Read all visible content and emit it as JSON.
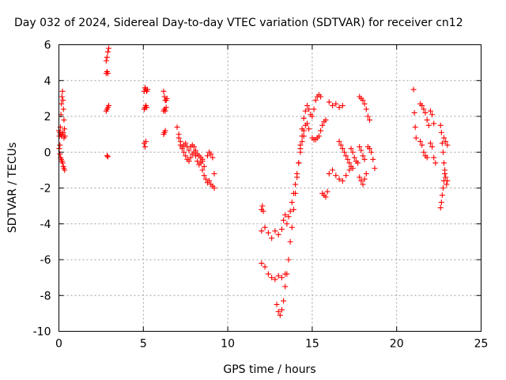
{
  "chart_data": {
    "type": "scatter",
    "title": "Day 032 of 2024, Sidereal Day-to-day VTEC variation (SDTVAR) for receiver cn12",
    "xlabel": "GPS time / hours",
    "ylabel": "SDTVAR / TECUs",
    "xlim": [
      0,
      25
    ],
    "ylim": [
      -10,
      6
    ],
    "xticks": [
      0,
      5,
      10,
      15,
      20,
      25
    ],
    "yticks": [
      -10,
      -8,
      -6,
      -4,
      -2,
      0,
      2,
      4,
      6
    ],
    "xtick_labels": [
      "0",
      "5",
      "10",
      "15",
      "20",
      "25"
    ],
    "ytick_labels": [
      "-10",
      "-8",
      "-6",
      "-4",
      "-2",
      "0",
      "2",
      "4",
      "6"
    ],
    "grid": true,
    "marker": "+",
    "color": "#ff0000",
    "segments": [
      {
        "x": [
          0.0,
          0.03,
          0.06,
          0.09,
          0.12,
          0.15,
          0.18,
          0.21,
          0.24,
          0.27,
          0.3,
          0.33,
          0.36
        ],
        "y": [
          1.2,
          0.9,
          0.4,
          1.4,
          2.1,
          2.7,
          3.1,
          3.4,
          2.9,
          2.4,
          1.8,
          1.3,
          0.9
        ]
      },
      {
        "x": [
          0.02,
          0.06,
          0.1,
          0.14,
          0.18,
          0.22,
          0.26,
          0.3,
          0.34
        ],
        "y": [
          0.2,
          -0.1,
          -0.3,
          -0.4,
          -0.5,
          -0.6,
          -0.8,
          -0.9,
          -1.0
        ]
      },
      {
        "x": [
          0.05,
          0.1,
          0.15,
          0.2,
          0.25,
          0.3
        ],
        "y": [
          1.1,
          1.0,
          0.9,
          1.0,
          1.1,
          0.8
        ]
      },
      {
        "x": [
          2.8,
          2.85,
          2.9,
          2.95
        ],
        "y": [
          5.1,
          5.3,
          5.6,
          5.8
        ]
      },
      {
        "x": [
          2.8,
          2.85,
          2.9
        ],
        "y": [
          4.4,
          4.5,
          4.4
        ]
      },
      {
        "x": [
          2.8,
          2.85,
          2.9,
          2.95
        ],
        "y": [
          2.3,
          2.4,
          2.5,
          2.6
        ]
      },
      {
        "x": [
          2.85,
          2.9
        ],
        "y": [
          -0.2,
          -0.25
        ]
      },
      {
        "x": [
          5.05,
          5.1,
          5.15,
          5.2,
          5.25
        ],
        "y": [
          3.4,
          3.6,
          3.5,
          3.4,
          3.5
        ]
      },
      {
        "x": [
          5.05,
          5.1,
          5.15,
          5.2
        ],
        "y": [
          2.4,
          2.5,
          2.6,
          2.5
        ]
      },
      {
        "x": [
          5.05,
          5.1,
          5.15
        ],
        "y": [
          0.5,
          0.3,
          0.6
        ]
      },
      {
        "x": [
          6.2,
          6.25,
          6.3,
          6.35,
          6.4
        ],
        "y": [
          3.4,
          3.1,
          2.9,
          2.9,
          3.0
        ]
      },
      {
        "x": [
          6.2,
          6.25,
          6.3,
          6.35
        ],
        "y": [
          2.3,
          2.4,
          2.3,
          2.5
        ]
      },
      {
        "x": [
          6.2,
          6.25,
          6.3
        ],
        "y": [
          1.0,
          1.1,
          1.2
        ]
      },
      {
        "x": [
          7.0,
          7.1,
          7.2,
          7.3,
          7.4,
          7.5,
          7.6,
          7.7,
          7.8,
          7.9,
          8.0,
          8.1,
          8.2,
          8.3,
          8.4,
          8.5
        ],
        "y": [
          1.4,
          1.0,
          0.6,
          0.3,
          0.0,
          -0.2,
          -0.4,
          -0.5,
          -0.3,
          -0.1,
          0.0,
          -0.2,
          -0.5,
          -0.7,
          -0.6,
          -0.4
        ]
      },
      {
        "x": [
          7.1,
          7.2,
          7.3,
          7.4,
          7.5,
          7.6,
          7.7,
          7.8,
          7.9,
          8.0,
          8.1,
          8.2,
          8.3,
          8.4,
          8.5,
          8.6
        ],
        "y": [
          0.8,
          0.4,
          0.2,
          0.4,
          0.5,
          0.3,
          0.1,
          0.3,
          0.4,
          0.3,
          0.1,
          -0.1,
          -0.2,
          -0.3,
          -0.5,
          -0.8
        ]
      },
      {
        "x": [
          8.5,
          8.6,
          8.7,
          8.8,
          8.9,
          9.0,
          9.1,
          9.2
        ],
        "y": [
          -1.0,
          -1.3,
          -1.5,
          -1.7,
          -1.6,
          -1.8,
          -1.9,
          -2.0
        ]
      },
      {
        "x": [
          8.8,
          8.9,
          9.0,
          9.1,
          9.2
        ],
        "y": [
          -0.2,
          0.0,
          -0.1,
          -0.3,
          -1.2
        ]
      },
      {
        "x": [
          12.0,
          12.05,
          12.1
        ],
        "y": [
          -3.2,
          -3.0,
          -3.3
        ]
      },
      {
        "x": [
          12.0,
          12.2,
          12.4,
          12.6,
          12.8,
          13.0,
          13.2,
          13.3,
          13.4
        ],
        "y": [
          -4.4,
          -4.2,
          -4.5,
          -4.8,
          -4.4,
          -4.6,
          -4.3,
          -3.8,
          -3.5
        ]
      },
      {
        "x": [
          12.0,
          12.2,
          12.4,
          12.6,
          12.8,
          13.0,
          13.2,
          13.4
        ],
        "y": [
          -6.2,
          -6.4,
          -6.8,
          -7.0,
          -7.1,
          -6.9,
          -7.0,
          -6.8
        ]
      },
      {
        "x": [
          12.9,
          13.0,
          13.1,
          13.2,
          13.3,
          13.4,
          13.5,
          13.6,
          13.7,
          13.8,
          13.9,
          14.0,
          14.1,
          14.2,
          14.3
        ],
        "y": [
          -8.5,
          -8.9,
          -9.1,
          -8.8,
          -8.3,
          -7.5,
          -6.8,
          -6.0,
          -5.0,
          -4.2,
          -3.2,
          -2.3,
          -1.4,
          -0.6,
          0.2
        ]
      },
      {
        "x": [
          13.5,
          13.6,
          13.7,
          13.8,
          13.9,
          14.0,
          14.1,
          14.2,
          14.3,
          14.4,
          14.5
        ],
        "y": [
          -4.0,
          -3.6,
          -3.3,
          -2.8,
          -2.3,
          -1.8,
          -1.2,
          -0.6,
          0.0,
          0.6,
          0.9
        ]
      },
      {
        "x": [
          14.4,
          14.5,
          14.6,
          14.7,
          14.8,
          14.9,
          15.0,
          15.1,
          15.2,
          15.3,
          15.4,
          15.5
        ],
        "y": [
          1.3,
          1.9,
          2.3,
          2.6,
          2.4,
          2.1,
          2.0,
          2.4,
          2.9,
          3.1,
          3.2,
          3.1
        ]
      },
      {
        "x": [
          14.3,
          14.4,
          14.5,
          14.6,
          14.7,
          14.8
        ],
        "y": [
          0.4,
          0.9,
          1.2,
          1.5,
          1.6,
          1.3
        ]
      },
      {
        "x": [
          15.0,
          15.1,
          15.2,
          15.3,
          15.4,
          15.5,
          15.6,
          15.7,
          15.8
        ],
        "y": [
          0.8,
          0.7,
          0.7,
          0.8,
          0.9,
          1.2,
          1.5,
          1.7,
          1.8
        ]
      },
      {
        "x": [
          15.6,
          15.7,
          15.8,
          15.9
        ],
        "y": [
          -2.3,
          -2.4,
          -2.5,
          -2.2
        ]
      },
      {
        "x": [
          16.0,
          16.2,
          16.4,
          16.6,
          16.8
        ],
        "y": [
          2.8,
          2.6,
          2.7,
          2.5,
          2.6
        ]
      },
      {
        "x": [
          16.0,
          16.2,
          16.4,
          16.6,
          16.8,
          17.0,
          17.2,
          17.4
        ],
        "y": [
          -1.2,
          -1.0,
          -1.3,
          -1.5,
          -1.6,
          -1.3,
          -1.0,
          -0.9
        ]
      },
      {
        "x": [
          16.6,
          16.7,
          16.8,
          16.9,
          17.0,
          17.1,
          17.2,
          17.3
        ],
        "y": [
          0.6,
          0.4,
          0.2,
          0.0,
          -0.2,
          -0.4,
          -0.6,
          -0.8
        ]
      },
      {
        "x": [
          17.3,
          17.4,
          17.5,
          17.6,
          17.7
        ],
        "y": [
          0.2,
          0.0,
          -0.3,
          -0.5,
          -0.6
        ]
      },
      {
        "x": [
          17.8,
          17.9,
          18.0,
          18.1,
          18.2,
          18.3,
          18.4
        ],
        "y": [
          3.1,
          3.0,
          2.9,
          2.7,
          2.4,
          2.0,
          1.8
        ]
      },
      {
        "x": [
          17.8,
          17.9,
          18.0,
          18.1,
          18.2
        ],
        "y": [
          -1.4,
          -1.6,
          -1.8,
          -1.5,
          -1.2
        ]
      },
      {
        "x": [
          17.8,
          17.9,
          18.0,
          18.1
        ],
        "y": [
          0.3,
          0.1,
          -0.2,
          -0.4
        ]
      },
      {
        "x": [
          18.3,
          18.4,
          18.5,
          18.6,
          18.7
        ],
        "y": [
          0.3,
          0.2,
          0.0,
          -0.4,
          -0.9
        ]
      },
      {
        "x": [
          21.0,
          21.05,
          21.1,
          21.15
        ],
        "y": [
          3.5,
          2.2,
          1.4,
          0.8
        ]
      },
      {
        "x": [
          21.4,
          21.5,
          21.6,
          21.7,
          21.8,
          21.9
        ],
        "y": [
          2.7,
          2.6,
          2.4,
          2.2,
          1.8,
          1.5
        ]
      },
      {
        "x": [
          21.4,
          21.5,
          21.6,
          21.7,
          21.8
        ],
        "y": [
          0.6,
          0.4,
          0.0,
          -0.2,
          -0.3
        ]
      },
      {
        "x": [
          22.0,
          22.1,
          22.2
        ],
        "y": [
          2.3,
          2.1,
          1.6
        ]
      },
      {
        "x": [
          22.0,
          22.1,
          22.2,
          22.3
        ],
        "y": [
          0.5,
          0.3,
          -0.3,
          -0.6
        ]
      },
      {
        "x": [
          22.6,
          22.65,
          22.7,
          22.75,
          22.8,
          22.85,
          22.9,
          22.95,
          23.0
        ],
        "y": [
          1.5,
          1.1,
          0.5,
          0.0,
          -0.6,
          -1.0,
          -1.4,
          -1.8,
          -1.6
        ]
      },
      {
        "x": [
          22.6,
          22.65,
          22.7,
          22.75,
          22.8,
          22.85
        ],
        "y": [
          -3.1,
          -2.8,
          -2.4,
          -2.0,
          -1.6,
          -1.2
        ]
      },
      {
        "x": [
          22.8,
          22.9,
          23.0
        ],
        "y": [
          0.8,
          0.6,
          0.4
        ]
      }
    ]
  }
}
